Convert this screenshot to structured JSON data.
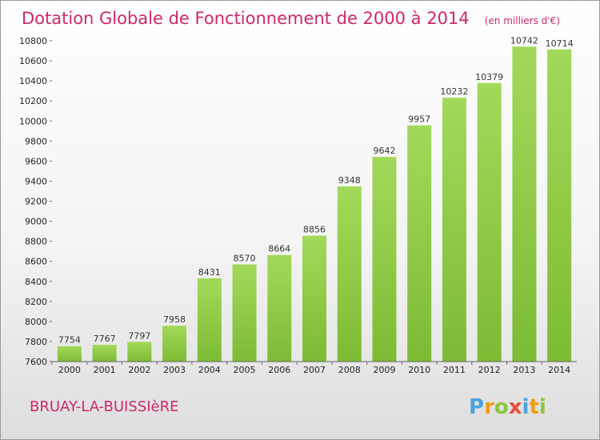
{
  "chart_data": {
    "type": "bar",
    "title": "Dotation Globale de Fonctionnement de 2000 à 2014",
    "subtitle": "(en milliers d'€)",
    "categories": [
      "2000",
      "2001",
      "2002",
      "2003",
      "2004",
      "2005",
      "2006",
      "2007",
      "2008",
      "2009",
      "2010",
      "2011",
      "2012",
      "2013",
      "2014"
    ],
    "values": [
      7754,
      7767,
      7797,
      7958,
      8431,
      8570,
      8664,
      8856,
      9348,
      9642,
      9957,
      10232,
      10379,
      10742,
      10714
    ],
    "ylim": [
      7600,
      10800
    ],
    "yticks": [
      7600,
      7800,
      8000,
      8200,
      8400,
      8600,
      8800,
      9000,
      9200,
      9400,
      9600,
      9800,
      10000,
      10200,
      10400,
      10600,
      10800
    ],
    "grid": false,
    "bar_color": "#7dbb34",
    "bar_color_light": "#a3d95a"
  },
  "commune": "BRUAY-LA-BUISSIèRE",
  "logo": {
    "letters": [
      "P",
      "r",
      "o",
      "x",
      "i",
      "t",
      "i"
    ],
    "colors": [
      "#4aa3df",
      "#f39c12",
      "#8cc63f",
      "#e74c3c",
      "#4aa3df",
      "#f39c12",
      "#8cc63f"
    ]
  }
}
